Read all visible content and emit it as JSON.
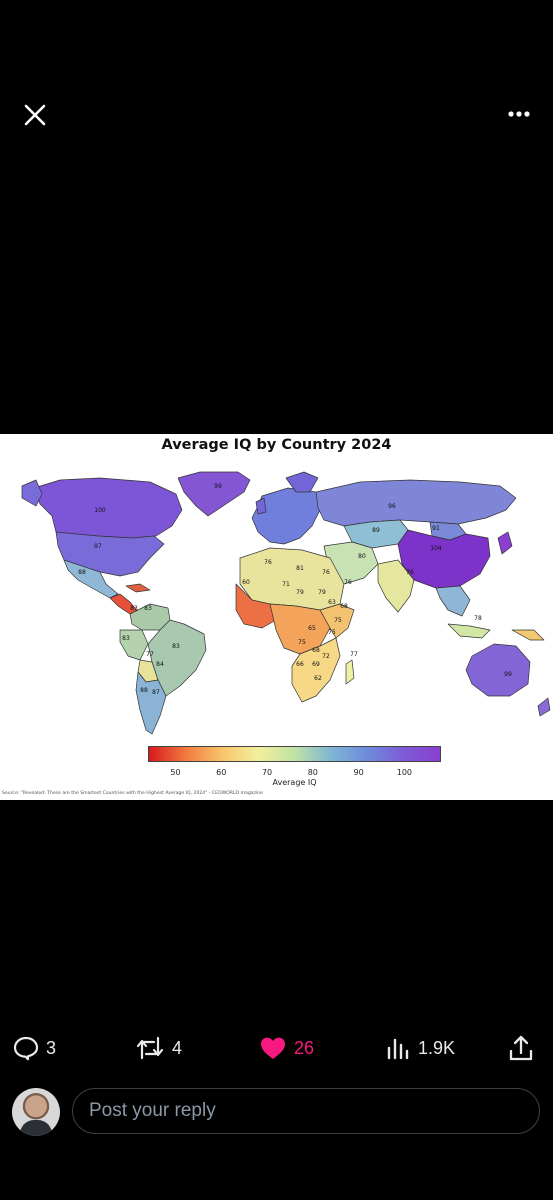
{
  "header": {
    "close_icon": "close-icon",
    "more_icon": "more-horizontal-icon"
  },
  "media": {
    "title": "Average IQ by Country 2024",
    "colorbar": {
      "label": "Average IQ",
      "ticks": [
        "50",
        "60",
        "70",
        "80",
        "90",
        "100"
      ],
      "tick_values": [
        50,
        60,
        70,
        80,
        90,
        100
      ],
      "range": [
        44,
        108
      ],
      "colors": [
        "#d7191c",
        "#f1793f",
        "#f8c46a",
        "#f3ef9c",
        "#bfe3a5",
        "#7fb6d4",
        "#6e8cdb",
        "#7e5bd6",
        "#8a3fd0"
      ]
    },
    "source": "Source: \"Revealed: These are the Smartest Countries with the Highest Average IQ, 2024\" - CEOWORLD magazine",
    "map_labels": [
      {
        "region": "greenland",
        "value": "99"
      },
      {
        "region": "canada",
        "value": "100"
      },
      {
        "region": "usa",
        "value": "97"
      },
      {
        "region": "mexico",
        "value": "88"
      },
      {
        "region": "colombia",
        "value": "83"
      },
      {
        "region": "venezuela",
        "value": "83"
      },
      {
        "region": "peru",
        "value": "83"
      },
      {
        "region": "bolivia",
        "value": "77"
      },
      {
        "region": "brazil",
        "value": "83"
      },
      {
        "region": "paraguay",
        "value": "84"
      },
      {
        "region": "chile",
        "value": "88"
      },
      {
        "region": "argentina",
        "value": "87"
      },
      {
        "region": "russia",
        "value": "96"
      },
      {
        "region": "kazakhstan",
        "value": "89"
      },
      {
        "region": "mongolia",
        "value": "91"
      },
      {
        "region": "china",
        "value": "104"
      },
      {
        "region": "iran",
        "value": "80"
      },
      {
        "region": "india",
        "value": "76"
      },
      {
        "region": "saudi",
        "value": "76"
      },
      {
        "region": "algeria",
        "value": "76"
      },
      {
        "region": "libya",
        "value": "81"
      },
      {
        "region": "egypt",
        "value": "76"
      },
      {
        "region": "mali",
        "value": "71"
      },
      {
        "region": "niger",
        "value": "79"
      },
      {
        "region": "chad",
        "value": "79"
      },
      {
        "region": "sudan",
        "value": "63"
      },
      {
        "region": "mauritania",
        "value": "60"
      },
      {
        "region": "ethiopia",
        "value": "68"
      },
      {
        "region": "drc",
        "value": "65"
      },
      {
        "region": "kenya",
        "value": "75"
      },
      {
        "region": "angola",
        "value": "75"
      },
      {
        "region": "tanzania",
        "value": "75"
      },
      {
        "region": "zambia",
        "value": "68"
      },
      {
        "region": "namibia",
        "value": "66"
      },
      {
        "region": "botswana",
        "value": "69"
      },
      {
        "region": "mozambique",
        "value": "72"
      },
      {
        "region": "southafrica",
        "value": "62"
      },
      {
        "region": "madagascar",
        "value": "77"
      },
      {
        "region": "australia",
        "value": "99"
      },
      {
        "region": "indonesia",
        "value": "78"
      }
    ]
  },
  "actions": {
    "reply": {
      "icon": "reply-icon",
      "count": "3"
    },
    "repost": {
      "icon": "repost-icon",
      "count": "4"
    },
    "like": {
      "icon": "heart-icon",
      "count": "26",
      "color": "#f91880"
    },
    "views": {
      "icon": "views-icon",
      "count": "1.9K"
    },
    "share": {
      "icon": "share-icon"
    }
  },
  "reply": {
    "placeholder": "Post your reply"
  }
}
